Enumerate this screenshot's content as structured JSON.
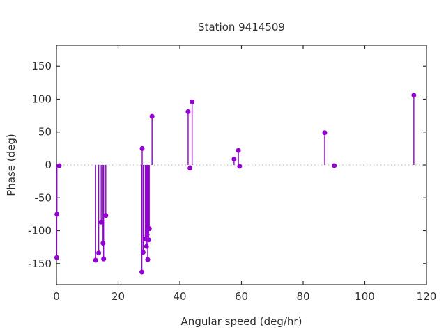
{
  "chart_data": {
    "type": "stem",
    "title": "Station 9414509",
    "xlabel": "Angular speed (deg/hr)",
    "ylabel": "Phase (deg)",
    "xlim": [
      0,
      120
    ],
    "ylim": [
      -182,
      182
    ],
    "x_ticks": [
      0,
      20,
      40,
      60,
      80,
      100,
      120
    ],
    "y_ticks": [
      -150,
      -100,
      -50,
      0,
      50,
      100,
      150
    ],
    "grid": false,
    "legend": "none",
    "zero_line_y": 0,
    "marker": "filled-circle",
    "marker_radius_px": 3.5,
    "series_color": "#9400d3",
    "zero_line_color": "#b3b3b3",
    "axis_color": "#2e2e2e",
    "points": [
      [
        0.1,
        -141
      ],
      [
        0.15,
        -75
      ],
      [
        0.9,
        -1
      ],
      [
        12.7,
        -145
      ],
      [
        13.7,
        -134
      ],
      [
        14.5,
        -87
      ],
      [
        15.1,
        -119
      ],
      [
        15.3,
        -143
      ],
      [
        16.0,
        -77
      ],
      [
        27.7,
        -163
      ],
      [
        27.8,
        25
      ],
      [
        28.1,
        -133
      ],
      [
        28.8,
        -113
      ],
      [
        29.2,
        -124
      ],
      [
        29.4,
        -106
      ],
      [
        29.6,
        -144
      ],
      [
        29.9,
        -114
      ],
      [
        30.1,
        -97
      ],
      [
        31.0,
        74
      ],
      [
        42.7,
        81
      ],
      [
        43.3,
        -5
      ],
      [
        44.0,
        96
      ],
      [
        57.6,
        9
      ],
      [
        59.0,
        22
      ],
      [
        59.4,
        -2
      ],
      [
        87.0,
        49
      ],
      [
        90.1,
        -1
      ],
      [
        115.9,
        106
      ]
    ]
  }
}
